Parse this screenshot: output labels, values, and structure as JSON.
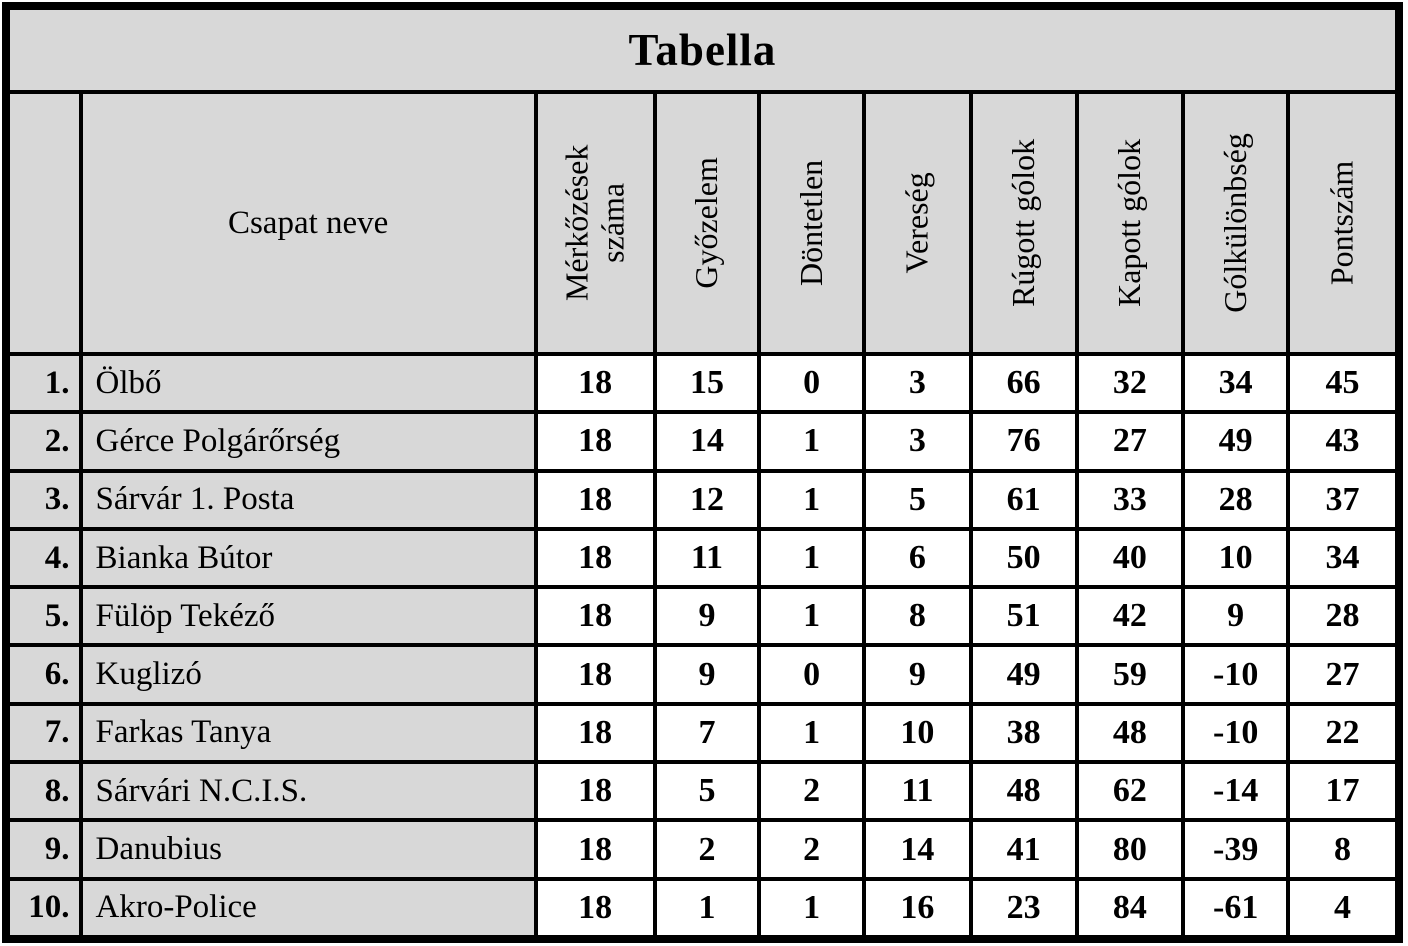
{
  "title": "Tabella",
  "columns": {
    "rank": "",
    "team": "Csapat neve",
    "stats": [
      "Mérkőzések\nszáma",
      "Győzelem",
      "Döntetlen",
      "Vereség",
      "Rúgott gólok",
      "Kapott gólok",
      "Gólkülönbség",
      "Pontszám"
    ]
  },
  "rows": [
    {
      "rank": "1.",
      "team": "Ölbő",
      "values": [
        18,
        15,
        0,
        3,
        66,
        32,
        34,
        45
      ]
    },
    {
      "rank": "2.",
      "team": "Gérce Polgárőrség",
      "values": [
        18,
        14,
        1,
        3,
        76,
        27,
        49,
        43
      ]
    },
    {
      "rank": "3.",
      "team": "Sárvár 1. Posta",
      "values": [
        18,
        12,
        1,
        5,
        61,
        33,
        28,
        37
      ]
    },
    {
      "rank": "4.",
      "team": "Bianka Bútor",
      "values": [
        18,
        11,
        1,
        6,
        50,
        40,
        10,
        34
      ]
    },
    {
      "rank": "5.",
      "team": "Fülöp Tekéző",
      "values": [
        18,
        9,
        1,
        8,
        51,
        42,
        9,
        28
      ]
    },
    {
      "rank": "6.",
      "team": "Kuglizó",
      "values": [
        18,
        9,
        0,
        9,
        49,
        59,
        -10,
        27
      ]
    },
    {
      "rank": "7.",
      "team": "Farkas Tanya",
      "values": [
        18,
        7,
        1,
        10,
        38,
        48,
        -10,
        22
      ]
    },
    {
      "rank": "8.",
      "team": "Sárvári N.C.I.S.",
      "values": [
        18,
        5,
        2,
        11,
        48,
        62,
        -14,
        17
      ]
    },
    {
      "rank": "9.",
      "team": "Danubius",
      "values": [
        18,
        2,
        2,
        14,
        41,
        80,
        -39,
        8
      ]
    },
    {
      "rank": "10.",
      "team": "Akro-Police",
      "values": [
        18,
        1,
        1,
        16,
        23,
        84,
        -61,
        4
      ]
    }
  ],
  "colors": {
    "header_bg": "#d8d8d8",
    "cell_bg": "#ffffff",
    "border": "#000000",
    "text": "#000000"
  },
  "chart_data": {
    "type": "table",
    "title": "Tabella",
    "headers": [
      "",
      "Csapat neve",
      "Mérkőzések száma",
      "Győzelem",
      "Döntetlen",
      "Vereség",
      "Rúgott gólok",
      "Kapott gólok",
      "Gólkülönbség",
      "Pontszám"
    ],
    "rows": [
      [
        "1.",
        "Ölbő",
        18,
        15,
        0,
        3,
        66,
        32,
        34,
        45
      ],
      [
        "2.",
        "Gérce Polgárőrség",
        18,
        14,
        1,
        3,
        76,
        27,
        49,
        43
      ],
      [
        "3.",
        "Sárvár 1. Posta",
        18,
        12,
        1,
        5,
        61,
        33,
        28,
        37
      ],
      [
        "4.",
        "Bianka Bútor",
        18,
        11,
        1,
        6,
        50,
        40,
        10,
        34
      ],
      [
        "5.",
        "Fülöp Tekéző",
        18,
        9,
        1,
        8,
        51,
        42,
        9,
        28
      ],
      [
        "6.",
        "Kuglizó",
        18,
        9,
        0,
        9,
        49,
        59,
        -10,
        27
      ],
      [
        "7.",
        "Farkas Tanya",
        18,
        7,
        1,
        10,
        38,
        48,
        -10,
        22
      ],
      [
        "8.",
        "Sárvári N.C.I.S.",
        18,
        5,
        2,
        11,
        48,
        62,
        -14,
        17
      ],
      [
        "9.",
        "Danubius",
        18,
        2,
        2,
        14,
        41,
        80,
        -39,
        8
      ],
      [
        "10.",
        "Akro-Police",
        18,
        1,
        1,
        16,
        23,
        84,
        -61,
        4
      ]
    ]
  }
}
